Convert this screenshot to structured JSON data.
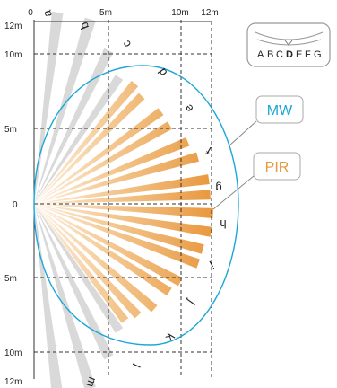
{
  "axes": {
    "x_ticks": [
      "0",
      "5m",
      "10m",
      "12m"
    ],
    "y_ticks": [
      "12m",
      "10m",
      "5m",
      "0",
      "5m",
      "10m",
      "12m"
    ]
  },
  "beam_labels": [
    "a",
    "b",
    "c",
    "d",
    "e",
    "f",
    "g",
    "h",
    "i",
    "j",
    "k",
    "l",
    "m"
  ],
  "selector": {
    "letters": [
      "A",
      "B",
      "C",
      "D",
      "E",
      "F",
      "G"
    ],
    "selected": "D"
  },
  "legend": {
    "mw_label": "MW",
    "pir_label": "PIR"
  },
  "colors": {
    "mw": "#1aa7d8",
    "pir": "#e8a24f",
    "pir_light": "#f6dcb6",
    "inactive_beam": "#d9d9d9",
    "grid": "#333333"
  }
}
